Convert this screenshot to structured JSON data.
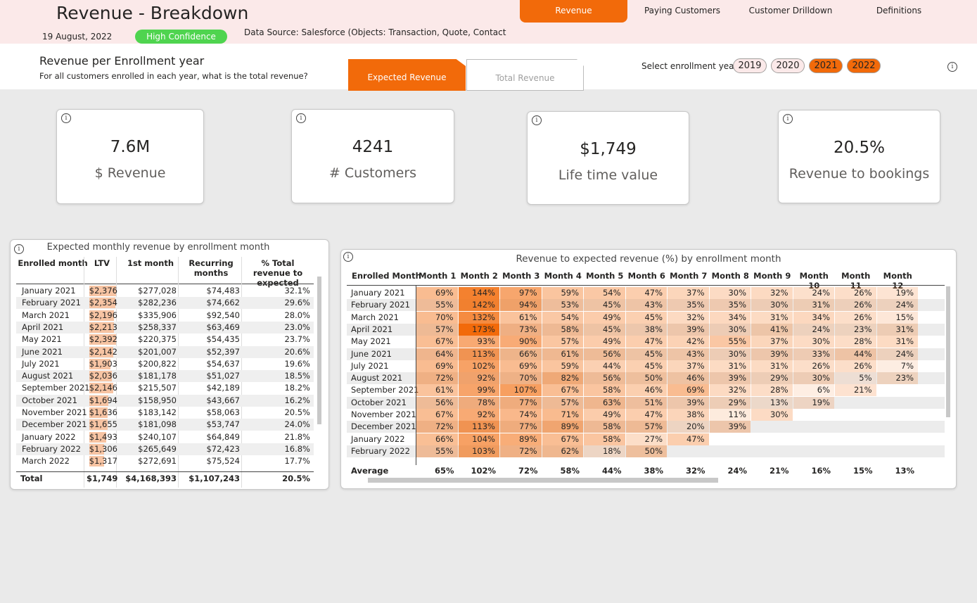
{
  "header": {
    "title": "Revenue - Breakdown",
    "date": "19 August, 2022",
    "confidence": "High Confidence",
    "source": "Data Source: Salesforce (Objects: Transaction, Quote, Contact"
  },
  "nav": [
    {
      "label": "Revenue",
      "active": true
    },
    {
      "label": "Paying Customers",
      "active": false
    },
    {
      "label": "Customer Drilldown",
      "active": false
    },
    {
      "label": "Definitions",
      "active": false
    }
  ],
  "section": {
    "title": "Revenue per Enrollment year",
    "subtitle": "For all customers enrolled in each year, what is the total revenue?"
  },
  "tabs": [
    {
      "label": "Expected Revenue",
      "active": true
    },
    {
      "label": "Total Revenue",
      "active": false
    }
  ],
  "year_select": {
    "label": "Select enrollment year",
    "years": [
      {
        "label": "2019",
        "selected": false
      },
      {
        "label": "2020",
        "selected": false
      },
      {
        "label": "2021",
        "selected": true
      },
      {
        "label": "2022",
        "selected": true
      }
    ]
  },
  "kpis": [
    {
      "value": "7.6M",
      "label": "$ Revenue"
    },
    {
      "value": "4241",
      "label": "# Customers"
    },
    {
      "value": "$1,749",
      "label": "Life time value"
    },
    {
      "value": "20.5%",
      "label": "Revenue to bookings"
    }
  ],
  "monthly_table": {
    "title": "Expected monthly revenue by enrollment month",
    "columns": [
      "Enrolled month",
      "LTV",
      "1st month",
      "Recurring months",
      "% Total revenue to expected"
    ],
    "rows": [
      [
        "January 2021",
        "$2,376",
        "$277,028",
        "$74,483",
        "32.1%"
      ],
      [
        "February 2021",
        "$2,354",
        "$282,236",
        "$74,662",
        "29.6%"
      ],
      [
        "March 2021",
        "$2,196",
        "$335,906",
        "$92,540",
        "28.0%"
      ],
      [
        "April 2021",
        "$2,213",
        "$258,337",
        "$63,469",
        "23.0%"
      ],
      [
        "May 2021",
        "$2,392",
        "$220,375",
        "$54,435",
        "23.7%"
      ],
      [
        "June 2021",
        "$2,142",
        "$201,007",
        "$52,397",
        "20.6%"
      ],
      [
        "July 2021",
        "$1,903",
        "$200,822",
        "$54,637",
        "19.6%"
      ],
      [
        "August 2021",
        "$2,036",
        "$181,178",
        "$51,027",
        "18.5%"
      ],
      [
        "September 2021",
        "$2,146",
        "$215,507",
        "$42,189",
        "18.2%"
      ],
      [
        "October 2021",
        "$1,694",
        "$158,950",
        "$43,667",
        "16.2%"
      ],
      [
        "November 2021",
        "$1,636",
        "$183,142",
        "$58,063",
        "20.5%"
      ],
      [
        "December 2021",
        "$1,655",
        "$181,098",
        "$53,747",
        "24.0%"
      ],
      [
        "January 2022",
        "$1,493",
        "$240,107",
        "$64,849",
        "21.8%"
      ],
      [
        "February 2022",
        "$1,306",
        "$265,649",
        "$72,423",
        "16.8%"
      ],
      [
        "March 2022",
        "$1,317",
        "$272,691",
        "$75,524",
        "17.7%"
      ]
    ],
    "total": [
      "Total",
      "$1,749",
      "$4,168,393",
      "$1,107,243",
      "20.5%"
    ]
  },
  "ratio_table": {
    "title": "Revenue to expected revenue (%) by enrollment month",
    "columns": [
      "Enrolled Month",
      "Month 1",
      "Month 2",
      "Month 3",
      "Month 4",
      "Month 5",
      "Month 6",
      "Month 7",
      "Month 8",
      "Month 9",
      "Month 10",
      "Month 11",
      "Month 12"
    ],
    "rows": [
      [
        "January 2021",
        "69%",
        "144%",
        "97%",
        "59%",
        "54%",
        "47%",
        "37%",
        "30%",
        "32%",
        "24%",
        "26%",
        "19%"
      ],
      [
        "February 2021",
        "55%",
        "142%",
        "94%",
        "53%",
        "45%",
        "43%",
        "35%",
        "35%",
        "30%",
        "31%",
        "26%",
        "24%"
      ],
      [
        "March 2021",
        "70%",
        "132%",
        "61%",
        "54%",
        "49%",
        "45%",
        "32%",
        "34%",
        "31%",
        "34%",
        "26%",
        "15%"
      ],
      [
        "April 2021",
        "57%",
        "173%",
        "73%",
        "58%",
        "45%",
        "38%",
        "39%",
        "30%",
        "41%",
        "24%",
        "23%",
        "31%"
      ],
      [
        "May 2021",
        "67%",
        "93%",
        "90%",
        "57%",
        "49%",
        "47%",
        "42%",
        "55%",
        "37%",
        "30%",
        "28%",
        "31%"
      ],
      [
        "June 2021",
        "64%",
        "113%",
        "66%",
        "61%",
        "56%",
        "45%",
        "43%",
        "30%",
        "39%",
        "33%",
        "44%",
        "24%"
      ],
      [
        "July 2021",
        "69%",
        "102%",
        "69%",
        "59%",
        "44%",
        "45%",
        "37%",
        "31%",
        "31%",
        "26%",
        "26%",
        "7%"
      ],
      [
        "August 2021",
        "72%",
        "92%",
        "70%",
        "82%",
        "56%",
        "50%",
        "46%",
        "39%",
        "29%",
        "30%",
        "5%",
        "23%"
      ],
      [
        "September 2021",
        "61%",
        "99%",
        "107%",
        "67%",
        "58%",
        "46%",
        "69%",
        "32%",
        "28%",
        "6%",
        "21%",
        null
      ],
      [
        "October 2021",
        "56%",
        "78%",
        "77%",
        "57%",
        "63%",
        "51%",
        "39%",
        "29%",
        "13%",
        "19%",
        null,
        null
      ],
      [
        "November 2021",
        "67%",
        "92%",
        "74%",
        "71%",
        "49%",
        "47%",
        "38%",
        "11%",
        "30%",
        null,
        null,
        null
      ],
      [
        "December 2021",
        "72%",
        "113%",
        "77%",
        "89%",
        "58%",
        "57%",
        "20%",
        "39%",
        null,
        null,
        null,
        null
      ],
      [
        "January 2022",
        "66%",
        "104%",
        "89%",
        "67%",
        "58%",
        "27%",
        "47%",
        null,
        null,
        null,
        null,
        null
      ],
      [
        "February 2022",
        "55%",
        "103%",
        "72%",
        "62%",
        "18%",
        "50%",
        null,
        null,
        null,
        null,
        null,
        null
      ]
    ],
    "average": [
      "Average",
      "65%",
      "102%",
      "72%",
      "58%",
      "44%",
      "38%",
      "32%",
      "24%",
      "21%",
      "16%",
      "15%",
      "13%"
    ]
  }
}
